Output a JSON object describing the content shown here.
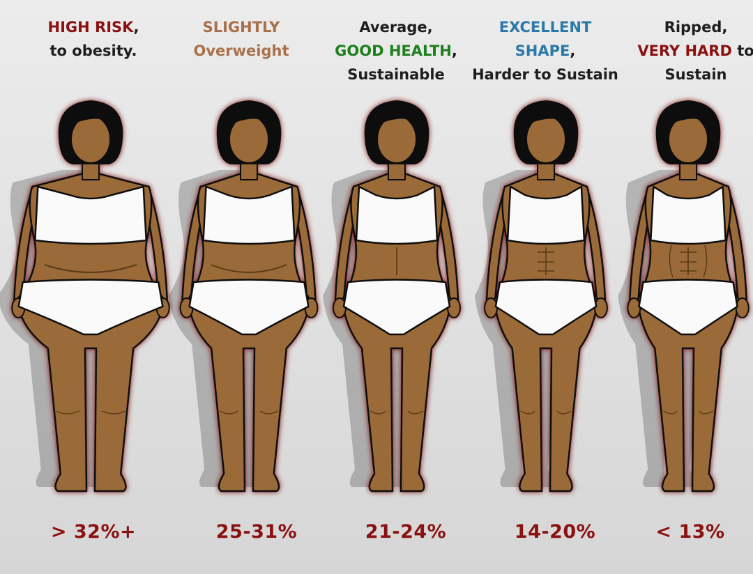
{
  "colors": {
    "high_risk": "#8b1111",
    "slightly": "#a9714a",
    "good_health": "#1d7f1d",
    "excellent": "#2b79a8",
    "very_hard": "#8b1111",
    "default_text": "#1e1e1e",
    "skin": "#9a6a37",
    "hair": "#111111",
    "outline_glow": "#7a0b0b"
  },
  "categories": [
    {
      "lines": [
        [
          {
            "text": "HIGH RISK",
            "color": "#8b1111"
          },
          {
            "text": ",",
            "color": "#1e1e1e"
          }
        ],
        [
          {
            "text": "to obesity.",
            "color": "#1e1e1e"
          }
        ]
      ],
      "range": "> 32%+"
    },
    {
      "lines": [
        [
          {
            "text": "SLIGHTLY",
            "color": "#a9714a"
          }
        ],
        [
          {
            "text": "Overweight",
            "color": "#a9714a"
          }
        ]
      ],
      "range": "25-31%"
    },
    {
      "lines": [
        [
          {
            "text": "Average,",
            "color": "#1e1e1e"
          }
        ],
        [
          {
            "text": "GOOD HEALTH",
            "color": "#1d7f1d"
          },
          {
            "text": ",",
            "color": "#1e1e1e"
          }
        ],
        [
          {
            "text": "Sustainable",
            "color": "#1e1e1e"
          }
        ]
      ],
      "range": "21-24%"
    },
    {
      "lines": [
        [
          {
            "text": "EXCELLENT",
            "color": "#2b79a8"
          }
        ],
        [
          {
            "text": "SHAPE",
            "color": "#2b79a8"
          },
          {
            "text": ",",
            "color": "#1e1e1e"
          }
        ],
        [
          {
            "text": "Harder to Sustain",
            "color": "#1e1e1e"
          }
        ]
      ],
      "range": "14-20%"
    },
    {
      "lines": [
        [
          {
            "text": "Ripped,",
            "color": "#1e1e1e"
          }
        ],
        [
          {
            "text": "VERY HARD",
            "color": "#8b1111"
          },
          {
            "text": " to",
            "color": "#1e1e1e"
          }
        ],
        [
          {
            "text": "Sustain",
            "color": "#1e1e1e"
          }
        ]
      ],
      "range": "< 13%"
    }
  ]
}
